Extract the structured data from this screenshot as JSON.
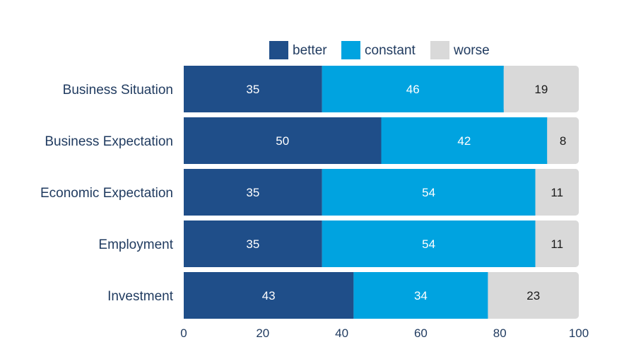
{
  "chart_data": {
    "type": "bar",
    "orientation": "horizontal",
    "stacked": true,
    "categories": [
      "Business Situation",
      "Business Expectation",
      "Economic Expectation",
      "Employment",
      "Investment"
    ],
    "series": [
      {
        "name": "better",
        "color": "#1f4e89",
        "label_color": "#ffffff",
        "values": [
          35,
          50,
          35,
          35,
          43
        ]
      },
      {
        "name": "constant",
        "color": "#00a3e0",
        "label_color": "#ffffff",
        "values": [
          46,
          42,
          54,
          54,
          34
        ]
      },
      {
        "name": "worse",
        "color": "#d9d9d9",
        "label_color": "#1a1a1a",
        "values": [
          19,
          8,
          11,
          11,
          23
        ]
      }
    ],
    "xlim": [
      0,
      100
    ],
    "xticks": [
      "0",
      "20",
      "40",
      "60",
      "80",
      "100"
    ],
    "grid": false,
    "legend": "top-center"
  }
}
